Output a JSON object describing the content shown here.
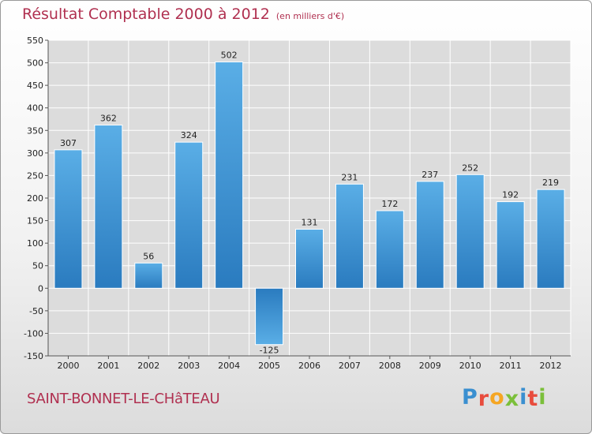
{
  "chart_data": {
    "type": "bar",
    "title": "Résultat Comptable 2000 à 2012",
    "unit": "(en milliers d'€)",
    "categories": [
      "2000",
      "2001",
      "2002",
      "2003",
      "2004",
      "2005",
      "2006",
      "2007",
      "2008",
      "2009",
      "2010",
      "2011",
      "2012"
    ],
    "values": [
      307,
      362,
      56,
      324,
      502,
      -125,
      131,
      231,
      172,
      237,
      252,
      192,
      219
    ],
    "value_labels": [
      "307",
      "362",
      "56",
      "324",
      "502",
      "-125",
      "131",
      "231",
      "172",
      "237",
      "252",
      "192",
      "219"
    ],
    "ylim": [
      -150,
      550
    ],
    "yticks": [
      -150,
      -100,
      -50,
      0,
      50,
      100,
      150,
      200,
      250,
      300,
      350,
      400,
      450,
      500,
      550
    ],
    "ytick_labels": [
      "-150",
      "-100",
      "-50",
      "0",
      "50",
      "100",
      "150",
      "200",
      "250",
      "300",
      "350",
      "400",
      "450",
      "500",
      "550"
    ],
    "xlabel": "",
    "ylabel": "",
    "grid": true,
    "bar_color_top": "#5aaee6",
    "bar_color_bottom": "#2a7bbf"
  },
  "footer": {
    "city": "SAINT-BONNET-LE-CHâTEAU",
    "brand_letters": [
      "P",
      "r",
      "o",
      "x",
      "i",
      "t",
      "i"
    ],
    "brand_colors": [
      "#3a8fd0",
      "#e84c3d",
      "#f5a623",
      "#7bbf3a",
      "#3a8fd0",
      "#e84c3d",
      "#7bbf3a"
    ]
  }
}
